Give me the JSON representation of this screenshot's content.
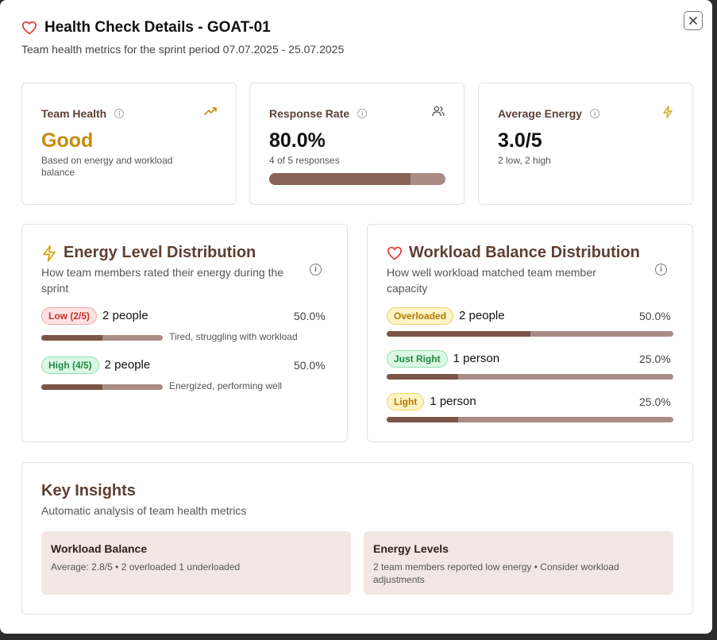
{
  "header": {
    "title": "Health Check Details - GOAT-01",
    "subtitle": "Team health metrics for the sprint period 07.07.2025 - 25.07.2025"
  },
  "stats": {
    "team_health": {
      "label": "Team Health",
      "value": "Good",
      "desc": "Based on energy and workload balance",
      "value_color": "#c98a0b"
    },
    "response_rate": {
      "label": "Response Rate",
      "value": "80.0%",
      "desc": "4 of 5 responses",
      "progress": 0.8
    },
    "average_energy": {
      "label": "Average Energy",
      "value": "3.0/5",
      "desc": "2 low, 2 high"
    }
  },
  "energy": {
    "title": "Energy Level Distribution",
    "subtitle": "How team members rated their energy during the sprint",
    "rows": [
      {
        "badge": "Low (2/5)",
        "people": "2 people",
        "pct": "50.0%",
        "note": "Tired, struggling with workload",
        "fill": 0.5
      },
      {
        "badge": "High (4/5)",
        "people": "2 people",
        "pct": "50.0%",
        "note": "Energized, performing well",
        "fill": 0.5
      }
    ]
  },
  "workload": {
    "title": "Workload Balance Distribution",
    "subtitle": "How well workload matched team member capacity",
    "rows": [
      {
        "badge": "Overloaded",
        "people": "2 people",
        "pct": "50.0%",
        "fill": 0.5
      },
      {
        "badge": "Just Right",
        "people": "1 person",
        "pct": "25.0%",
        "fill": 0.25
      },
      {
        "badge": "Light",
        "people": "1 person",
        "pct": "25.0%",
        "fill": 0.25
      }
    ]
  },
  "insights": {
    "title": "Key Insights",
    "subtitle": "Automatic analysis of team health metrics",
    "boxes": [
      {
        "title": "Workload Balance",
        "text": "Average: 2.8/5 • 2 overloaded 1 underloaded"
      },
      {
        "title": "Energy Levels",
        "text": "2 team members reported low energy • Consider workload adjustments"
      }
    ]
  },
  "icons": {
    "heart": "heart-icon",
    "close": "close-icon",
    "trend": "trending-up-icon",
    "users": "users-icon",
    "bolt": "lightning-icon",
    "info": "info-icon"
  },
  "colors": {
    "heart": "#e53e3e",
    "bolt": "#d4a60f",
    "brown_title": "#5c4033",
    "bar_fill": "#7b5548",
    "bar_track": "#a98c85"
  }
}
